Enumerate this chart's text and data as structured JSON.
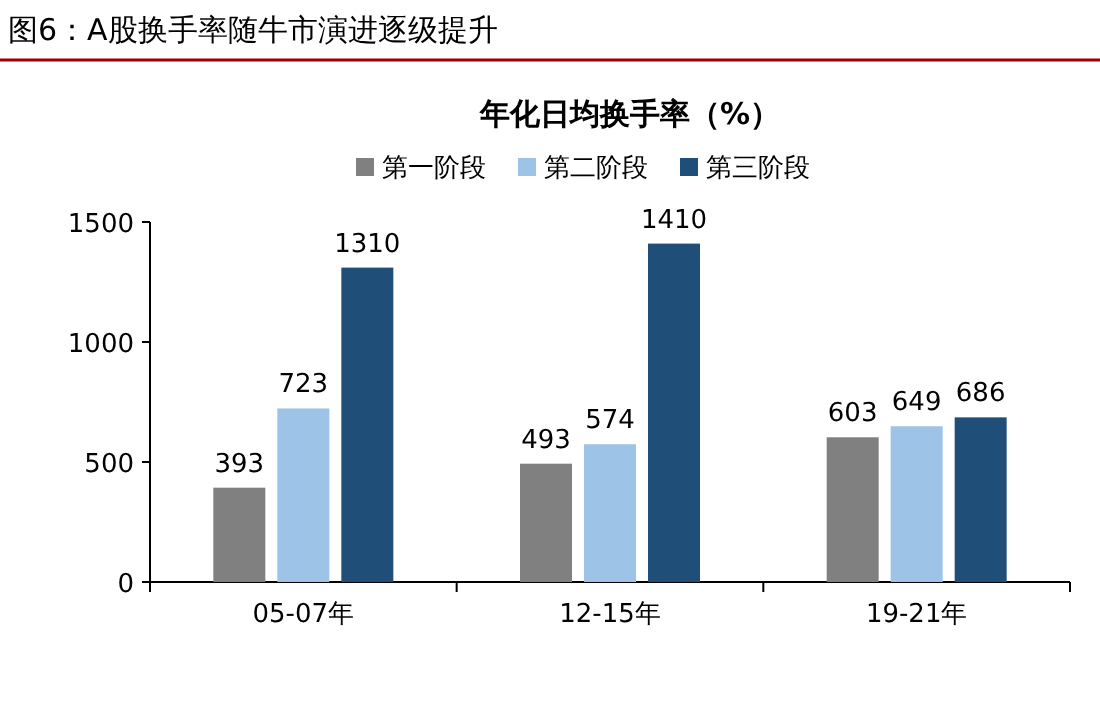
{
  "chart_data": {
    "type": "bar",
    "title": "图6：A股换手率随牛市演进逐级提升",
    "subtitle": "年化日均换手率（%）",
    "categories": [
      "05-07年",
      "12-15年",
      "19-21年"
    ],
    "series": [
      {
        "name": "第一阶段",
        "color": "#808080",
        "values": [
          393,
          493,
          603
        ]
      },
      {
        "name": "第二阶段",
        "color": "#9dc3e6",
        "values": [
          723,
          574,
          649
        ]
      },
      {
        "name": "第三阶段",
        "color": "#1f4e79",
        "values": [
          1310,
          1410,
          686
        ]
      }
    ],
    "ylim": [
      0,
      1500
    ],
    "yticks": [
      0,
      500,
      1000,
      1500
    ],
    "data_labels": true,
    "legend": "top",
    "grid": false
  }
}
